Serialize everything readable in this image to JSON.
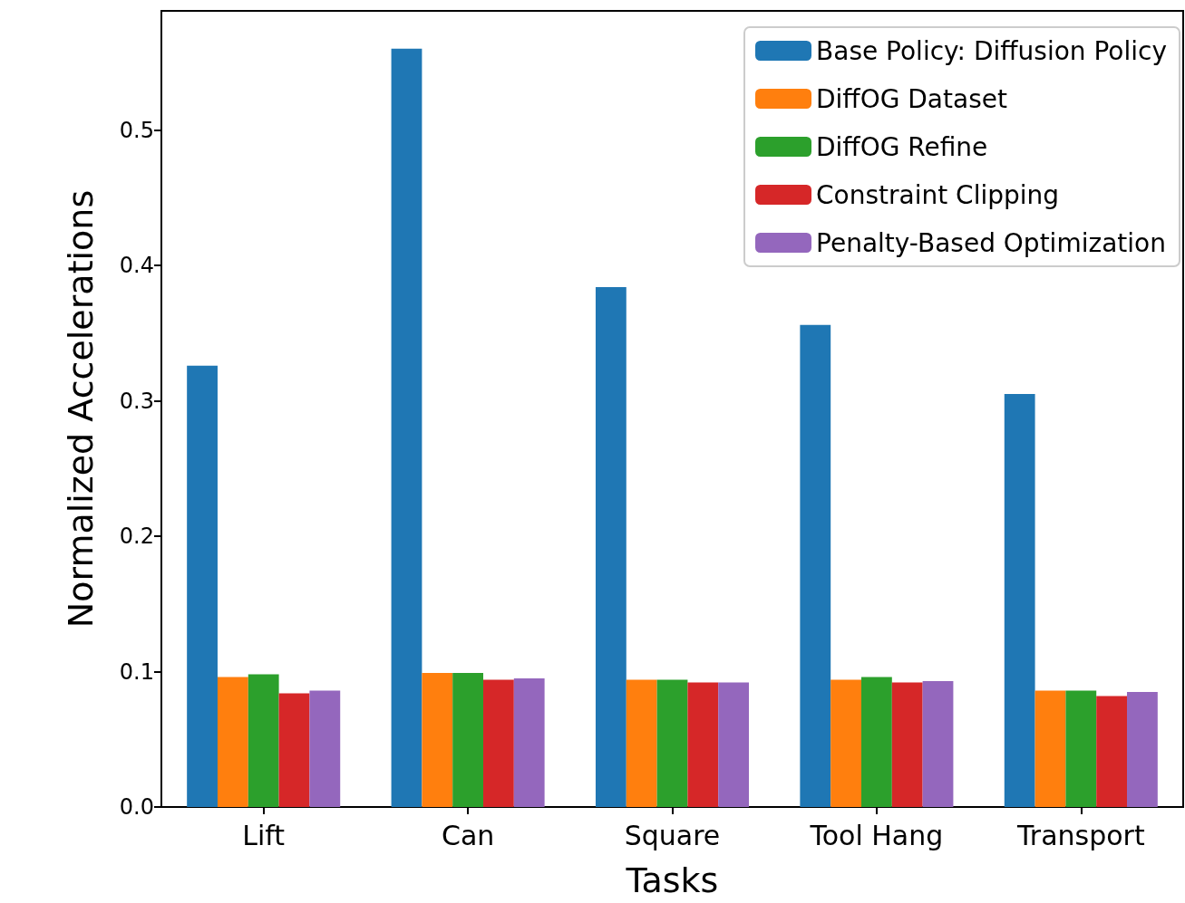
{
  "chart_data": {
    "type": "bar",
    "xlabel": "Tasks",
    "ylabel": "Normalized Accelerations",
    "categories": [
      "Lift",
      "Can",
      "Square",
      "Tool Hang",
      "Transport"
    ],
    "series": [
      {
        "name": "Base Policy: Diffusion Policy",
        "color": "#1f77b4",
        "values": [
          0.326,
          0.56,
          0.384,
          0.356,
          0.305
        ]
      },
      {
        "name": "DiffOG Dataset",
        "color": "#ff7f0e",
        "values": [
          0.096,
          0.099,
          0.094,
          0.094,
          0.086
        ]
      },
      {
        "name": "DiffOG Refine",
        "color": "#2ca02c",
        "values": [
          0.098,
          0.099,
          0.094,
          0.096,
          0.086
        ]
      },
      {
        "name": "Constraint Clipping",
        "color": "#d62728",
        "values": [
          0.084,
          0.094,
          0.092,
          0.092,
          0.082
        ]
      },
      {
        "name": "Penalty-Based Optimization",
        "color": "#9467bd",
        "values": [
          0.086,
          0.095,
          0.092,
          0.093,
          0.085
        ]
      }
    ],
    "ylim": [
      0,
      0.588
    ],
    "yticks": [
      {
        "value": 0,
        "label": "0.0"
      },
      {
        "value": 0.1,
        "label": "0.1"
      },
      {
        "value": 0.2,
        "label": "0.2"
      },
      {
        "value": 0.3,
        "label": "0.3"
      },
      {
        "value": 0.4,
        "label": "0.4"
      },
      {
        "value": 0.5,
        "label": "0.5"
      }
    ],
    "legend": "top right",
    "grid": false
  }
}
